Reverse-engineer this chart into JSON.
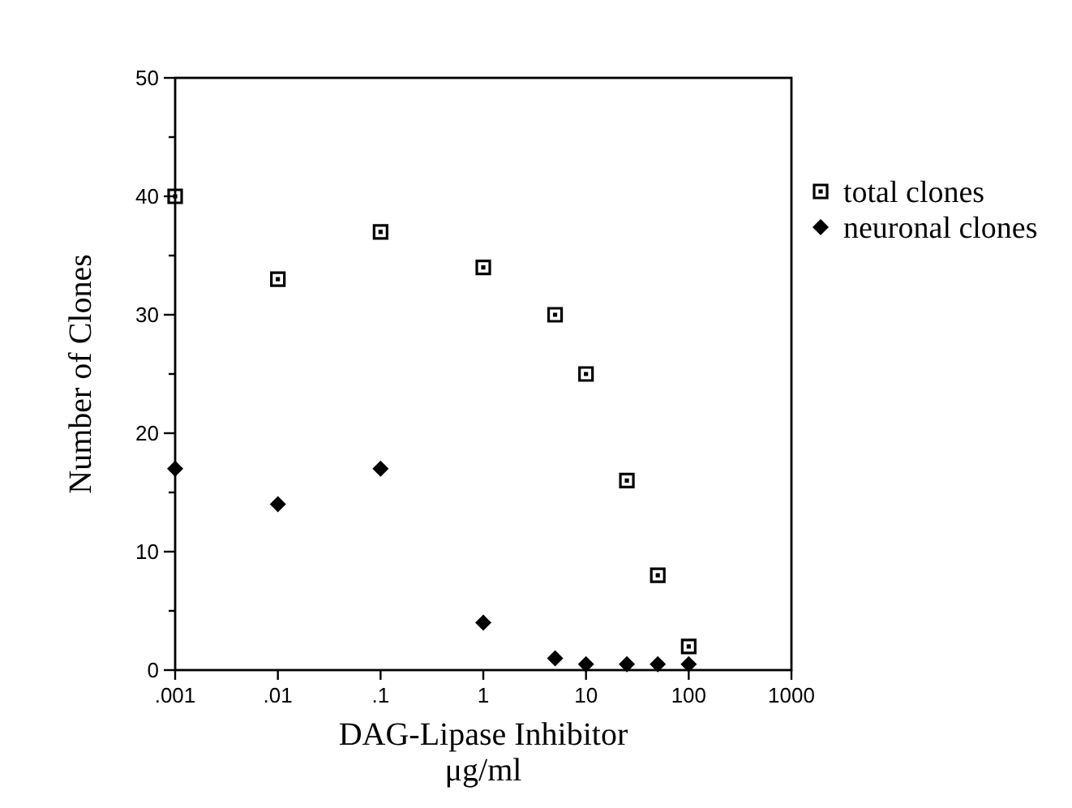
{
  "chart_data": {
    "type": "scatter",
    "xlabel": "DAG-Lipase Inhibitor\nμg/ml",
    "ylabel": "Number of Clones",
    "log": "x",
    "xlim": [
      0.001,
      1000
    ],
    "xticks": [
      {
        "value": 0.001,
        "label": ".001"
      },
      {
        "value": 0.01,
        "label": ".01"
      },
      {
        "value": 0.1,
        "label": ".1"
      },
      1,
      10,
      100,
      1000
    ],
    "ylim": [
      0,
      50
    ],
    "yticks": [
      0,
      {
        "value": 5,
        "label": null
      },
      10,
      {
        "value": 15,
        "label": null
      },
      20,
      {
        "value": 25,
        "label": null
      },
      30,
      {
        "value": 35,
        "label": null
      },
      40,
      {
        "value": 45,
        "label": null
      },
      50
    ],
    "grid": false,
    "legend": "top right",
    "series": [
      {
        "name": "total clones",
        "color": "#000000",
        "marker": "square",
        "x": [
          0.001,
          0.01,
          0.1,
          1,
          5,
          10,
          25,
          50,
          100
        ],
        "values": [
          40,
          33,
          37,
          34,
          30,
          25,
          16,
          8,
          2
        ]
      },
      {
        "name": "neuronal clones",
        "color": "#000000",
        "marker": "diamond",
        "x": [
          0.001,
          0.01,
          0.1,
          1,
          5,
          10,
          25,
          50,
          100
        ],
        "values": [
          17,
          14,
          17,
          4,
          1,
          0.5,
          0.5,
          0.5,
          0.5
        ]
      }
    ]
  }
}
